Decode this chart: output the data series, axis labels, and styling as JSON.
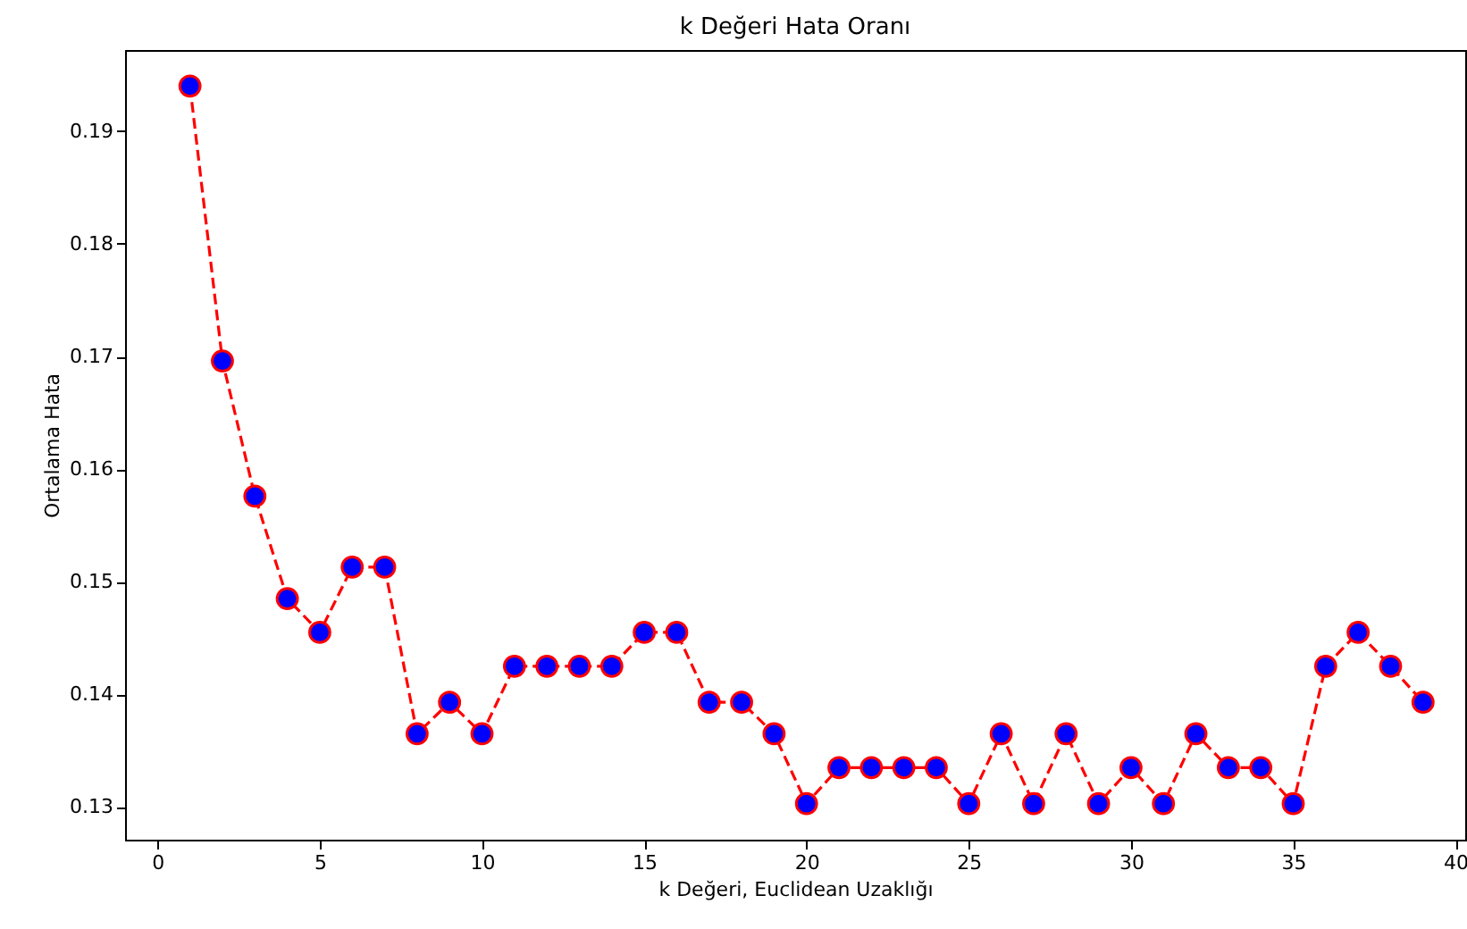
{
  "chart_data": {
    "type": "line",
    "title": "k Değeri Hata Oranı",
    "xlabel": "k Değeri, Euclidean Uzaklığı",
    "ylabel": "Ortalama Hata",
    "x": [
      1,
      2,
      3,
      4,
      5,
      6,
      7,
      8,
      9,
      10,
      11,
      12,
      13,
      14,
      15,
      16,
      17,
      18,
      19,
      20,
      21,
      22,
      23,
      24,
      25,
      26,
      27,
      28,
      29,
      30,
      31,
      32,
      33,
      34,
      35,
      36,
      37,
      38,
      39
    ],
    "series": [
      {
        "color": "#ff0000",
        "colors": [
          "#0000ff",
          "#0000ff",
          "#0000ff",
          "#0000ff",
          "#0000ff",
          "#0000ff",
          "#0000ff",
          "#0000ff",
          "#0000ff",
          "#0000ff",
          "#0000ff",
          "#0000ff",
          "#0000ff",
          "#0000ff",
          "#0000ff",
          "#0000ff",
          "#0000ff",
          "#0000ff",
          "#0000ff",
          "#0000ff",
          "#0000ff",
          "#0000ff",
          "#0000ff",
          "#0000ff",
          "#0000ff",
          "#0000ff",
          "#0000ff",
          "#0000ff",
          "#0000ff",
          "#0000ff",
          "#0000ff",
          "#0000ff",
          "#0000ff",
          "#0000ff",
          "#0000ff",
          "#0000ff",
          "#0000ff",
          "#0000ff",
          "#0000ff"
        ],
        "values": [
          0.194,
          0.1696,
          0.1576,
          0.1485,
          0.1455,
          0.1513,
          0.1513,
          0.1365,
          0.1393,
          0.1365,
          0.1425,
          0.1425,
          0.1425,
          0.1425,
          0.1455,
          0.1455,
          0.1393,
          0.1393,
          0.1365,
          0.1303,
          0.1335,
          0.1335,
          0.1335,
          0.1335,
          0.1303,
          0.1365,
          0.1303,
          0.1365,
          0.1303,
          0.1335,
          0.1303,
          0.1365,
          0.1335,
          0.1335,
          0.1303,
          0.1425,
          0.1455,
          0.1425,
          0.1393
        ]
      }
    ],
    "xlim": [
      -1,
      40.3
    ],
    "ylim": [
      0.1271,
      0.1972
    ],
    "xticks": [
      0,
      5,
      10,
      15,
      20,
      25,
      30,
      35,
      40
    ],
    "yticks": [
      0.13,
      0.14,
      0.15,
      0.16,
      0.17,
      0.18,
      0.19
    ],
    "marker": "circle",
    "line_style": "dashed",
    "grid": false
  }
}
